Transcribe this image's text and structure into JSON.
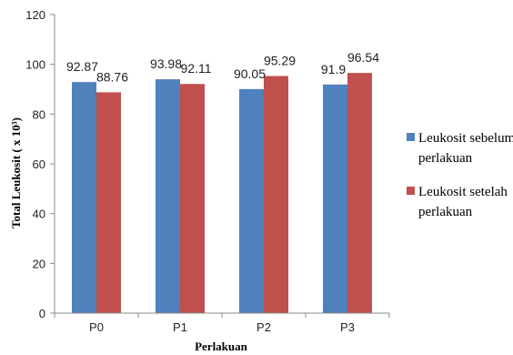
{
  "chart_data": {
    "type": "bar",
    "title": "",
    "xlabel": "Perlakuan",
    "ylabel": "Total Leukosit ( x 10³)",
    "categories": [
      "P0",
      "P1",
      "P2",
      "P3"
    ],
    "ylim": [
      0,
      120
    ],
    "yticks": [
      0,
      20,
      40,
      60,
      80,
      100,
      120
    ],
    "grid": false,
    "legend_position": "right",
    "series": [
      {
        "name_lines": [
          "Leukosit sebelum",
          "perlakuan"
        ],
        "color": "#4F81BD",
        "values": [
          92.87,
          93.98,
          90.05,
          91.9
        ],
        "labels": [
          "92.87",
          "93.98",
          "90.05",
          "91.9"
        ]
      },
      {
        "name_lines": [
          "Leukosit setelah",
          "perlakuan"
        ],
        "color": "#C0504D",
        "values": [
          88.76,
          92.11,
          95.29,
          96.54
        ],
        "labels": [
          "88.76",
          "92.11",
          "95.29",
          "96.54"
        ]
      }
    ]
  }
}
